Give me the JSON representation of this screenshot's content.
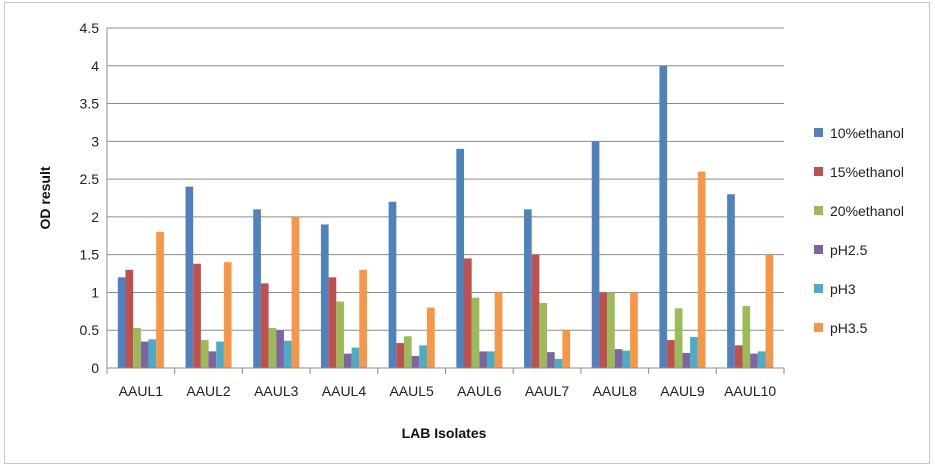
{
  "chart_data": {
    "type": "bar",
    "title": "",
    "xlabel": "LAB Isolates",
    "ylabel": "OD result",
    "ylim": [
      0,
      4.5
    ],
    "yticks": [
      "0",
      "0.5",
      "1",
      "1.5",
      "2",
      "2.5",
      "3",
      "3.5",
      "4",
      "4.5"
    ],
    "grid": "horizontal",
    "legend_position": "right",
    "categories": [
      "AAUL1",
      "AAUL2",
      "AAUL3",
      "AAUL4",
      "AAUL5",
      "AAUL6",
      "AAUL7",
      "AAUL8",
      "AAUL9",
      "AAUL10"
    ],
    "series": [
      {
        "name": "10%ethanol",
        "color": "#4f81bd",
        "values": [
          1.2,
          2.4,
          2.1,
          1.9,
          2.2,
          2.9,
          2.1,
          3.0,
          4.0,
          2.3
        ]
      },
      {
        "name": "15%ethanol",
        "color": "#c0504d",
        "values": [
          1.3,
          1.38,
          1.12,
          1.2,
          0.33,
          1.45,
          1.5,
          1.0,
          0.37,
          0.3
        ]
      },
      {
        "name": "20%ethanol",
        "color": "#9bbb59",
        "values": [
          0.53,
          0.37,
          0.53,
          0.88,
          0.42,
          0.93,
          0.86,
          1.0,
          0.79,
          0.82
        ]
      },
      {
        "name": "pH2.5",
        "color": "#8064a2",
        "values": [
          0.35,
          0.22,
          0.5,
          0.19,
          0.16,
          0.22,
          0.21,
          0.25,
          0.2,
          0.19
        ]
      },
      {
        "name": "pH3",
        "color": "#4bacc6",
        "values": [
          0.38,
          0.35,
          0.36,
          0.27,
          0.3,
          0.22,
          0.12,
          0.23,
          0.41,
          0.22
        ]
      },
      {
        "name": "pH3.5",
        "color": "#f79646",
        "values": [
          1.8,
          1.4,
          2.0,
          1.3,
          0.8,
          1.0,
          0.5,
          1.0,
          2.6,
          1.5
        ]
      }
    ]
  }
}
